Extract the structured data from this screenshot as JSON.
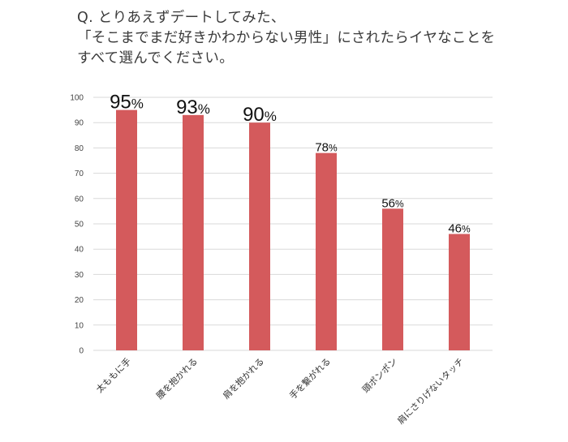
{
  "chart_data": {
    "type": "bar",
    "title": [
      "Q. とりあえずデートしてみた、",
      "「そこまでまだ好きかわからない男性」にされたらイヤなことを",
      "すべて選んでください。"
    ],
    "categories": [
      "太ももに手",
      "腰を抱かれる",
      "肩を抱かれる",
      "手を繋がれる",
      "頭ポンポン",
      "肩にさりげないタッチ"
    ],
    "values": [
      95,
      93,
      90,
      78,
      56,
      46
    ],
    "value_suffix": "%",
    "ylim": [
      0,
      100
    ],
    "yticks": [
      0,
      10,
      20,
      30,
      40,
      50,
      60,
      70,
      80,
      90,
      100
    ],
    "grid": true,
    "bar_color": "#d45a5c",
    "grid_color": "#d9d9d9"
  }
}
